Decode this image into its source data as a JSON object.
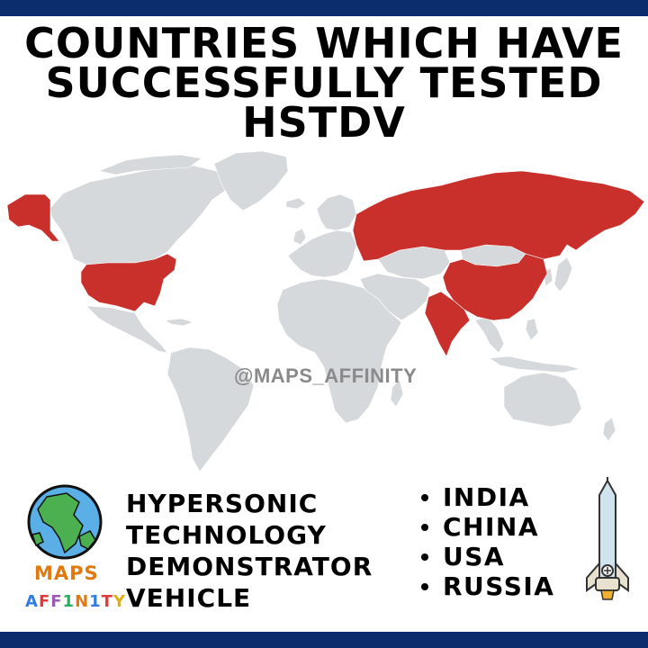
{
  "title": {
    "line1": "COUNTRIES WHICH HAVE",
    "line2": "SUCCESSFULLY TESTED",
    "line3": "HSTDV"
  },
  "watermark": "@MAPS_AFFINITY",
  "logo": {
    "line1": "MAPS",
    "line2_letters": [
      "A",
      "F",
      "F",
      "1",
      "N",
      "1",
      "T",
      "Y"
    ],
    "line2_colors": [
      "#2f7de0",
      "#e03a3a",
      "#9b59b6",
      "#27ae60",
      "#e07a10",
      "#2f7de0",
      "#e03a3a",
      "#e0b010"
    ]
  },
  "description": {
    "line1": "HYPERSONIC",
    "line2": "TECHNOLOGY",
    "line3": "DEMONSTRATOR",
    "line4": "VEHICLE"
  },
  "countries": [
    "INDIA",
    "CHINA",
    "USA",
    "RUSSIA"
  ],
  "colors": {
    "highlight": "#c9302c",
    "land": "#d5d9dc",
    "banner": "#0a2d6e"
  }
}
